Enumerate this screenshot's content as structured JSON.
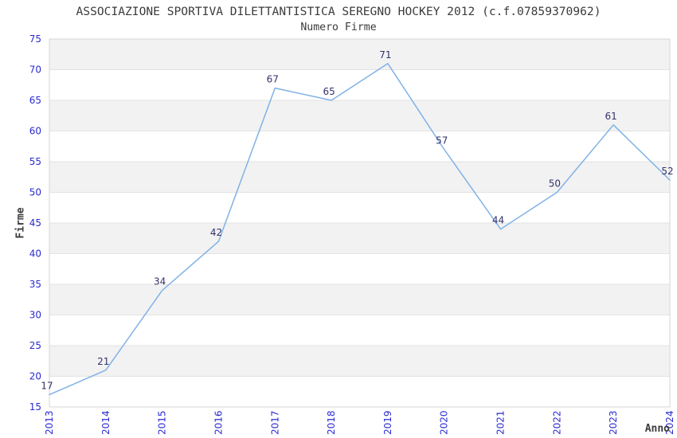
{
  "header": {
    "title": "ASSOCIAZIONE SPORTIVA DILETTANTISTICA SEREGNO HOCKEY 2012 (c.f.07859370962)",
    "subtitle": "Numero Firme"
  },
  "chart_data": {
    "type": "line",
    "title": "ASSOCIAZIONE SPORTIVA DILETTANTISTICA SEREGNO HOCKEY 2012 (c.f.07859370962)",
    "subtitle": "Numero Firme",
    "xlabel": "Anno",
    "ylabel": "Firme",
    "categories": [
      "2013",
      "2014",
      "2015",
      "2016",
      "2017",
      "2018",
      "2019",
      "2020",
      "2021",
      "2022",
      "2023",
      "2024"
    ],
    "values": [
      17,
      21,
      34,
      42,
      67,
      65,
      71,
      57,
      44,
      50,
      61,
      52
    ],
    "ylim": [
      15,
      75
    ],
    "ytick_step": 5,
    "grid": "alternating-horizontal-bands",
    "legend": "none",
    "point_labels_visible": true
  },
  "colors": {
    "line": "#7fb2e6",
    "tick_label": "#2b2bd2",
    "data_label": "#32326b",
    "band": "#f2f2f2",
    "gridline": "#e3e3e3",
    "plot_border": "#d6d6d6",
    "title_text": "#3b3b3b",
    "background": "#ffffff"
  }
}
